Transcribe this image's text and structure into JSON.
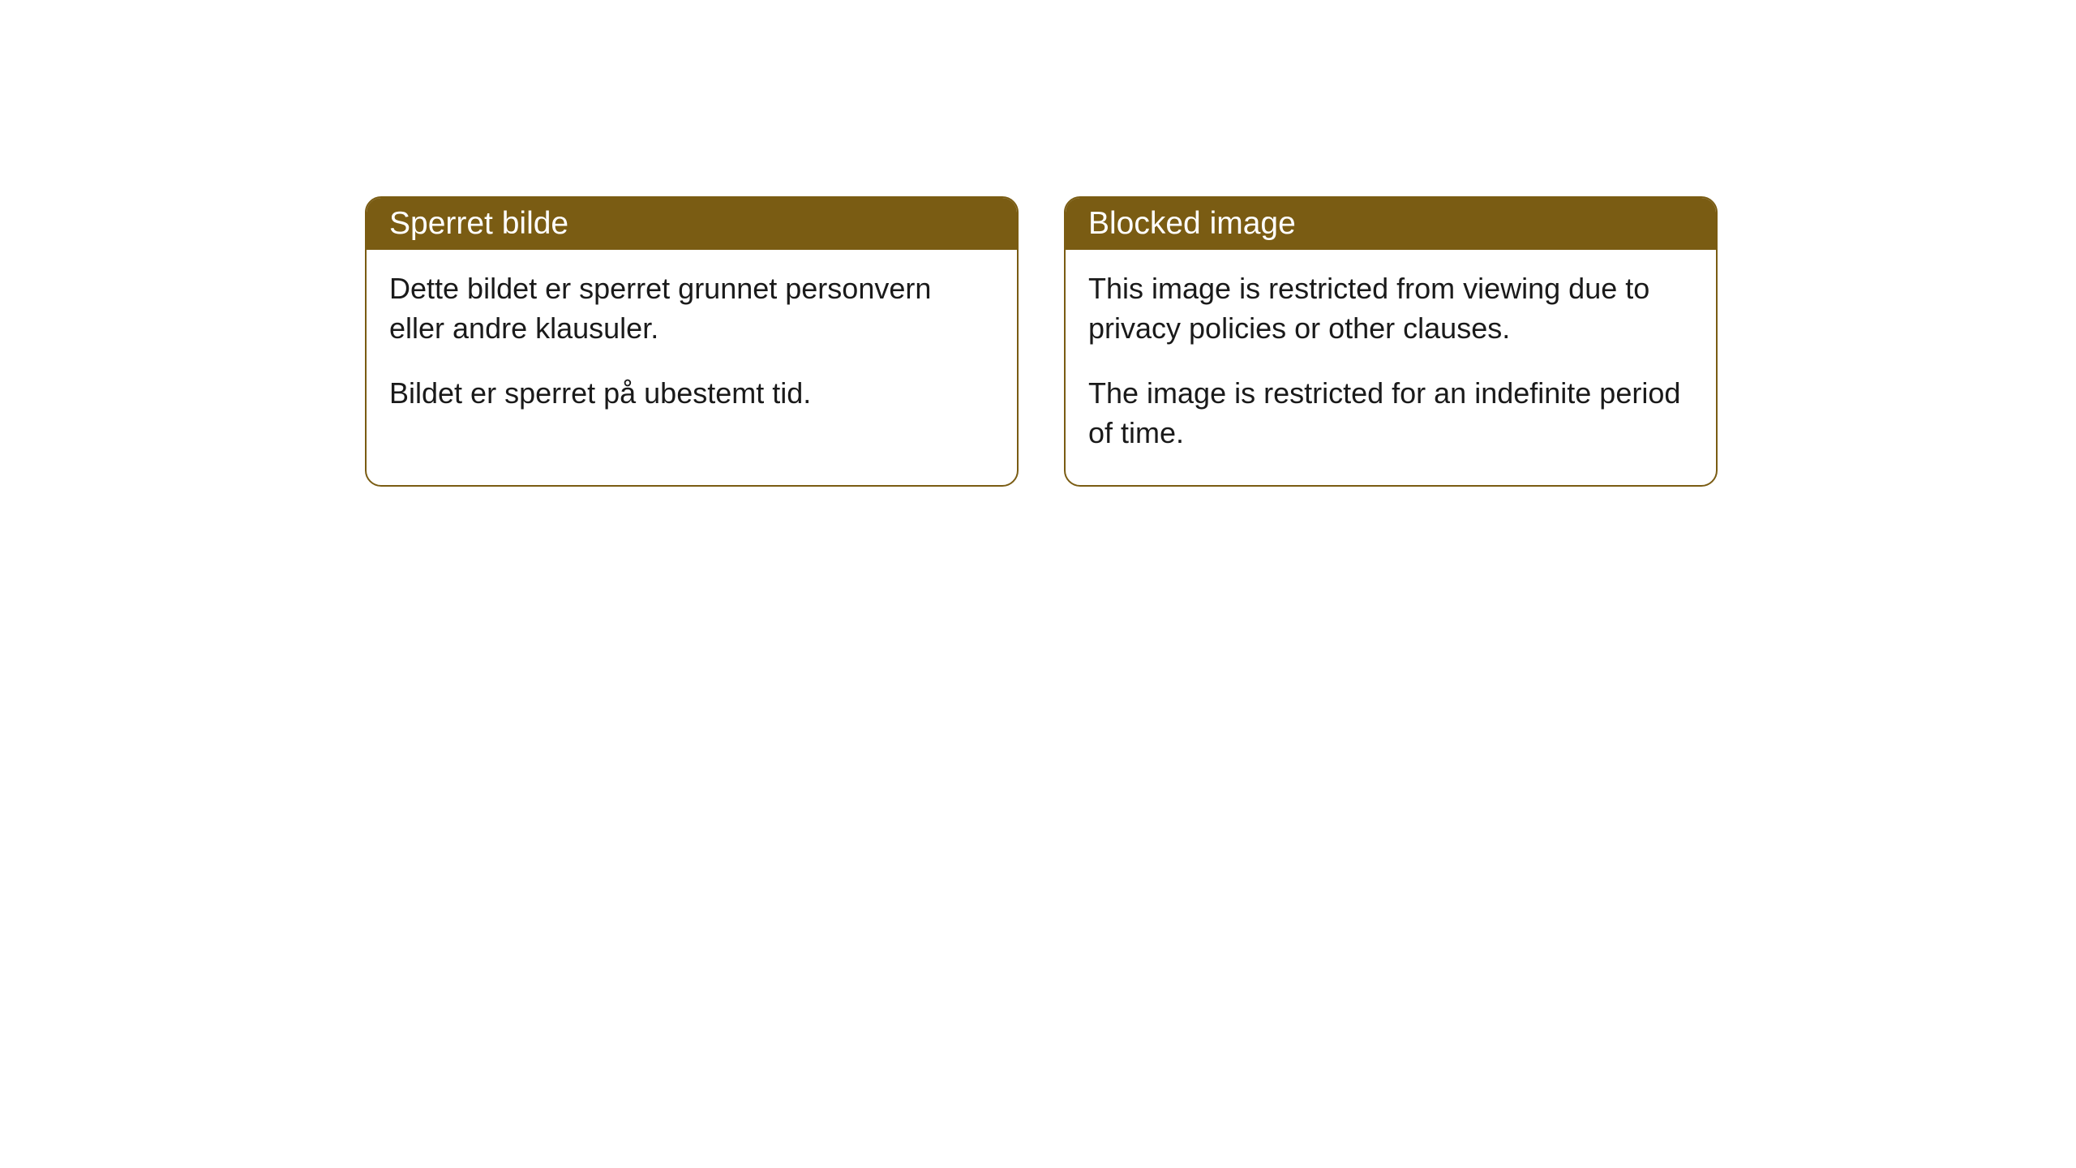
{
  "cards": [
    {
      "title": "Sperret bilde",
      "paragraph1": "Dette bildet er sperret grunnet personvern eller andre klausuler.",
      "paragraph2": "Bildet er sperret på ubestemt tid."
    },
    {
      "title": "Blocked image",
      "paragraph1": "This image is restricted from viewing due to privacy policies or other clauses.",
      "paragraph2": "The image is restricted for an indefinite period of time."
    }
  ],
  "styling": {
    "header_bg_color": "#7a5c13",
    "header_text_color": "#ffffff",
    "border_color": "#7a5c13",
    "body_bg_color": "#ffffff",
    "body_text_color": "#1a1a1a",
    "border_radius": 20,
    "title_fontsize": 39,
    "body_fontsize": 36
  }
}
